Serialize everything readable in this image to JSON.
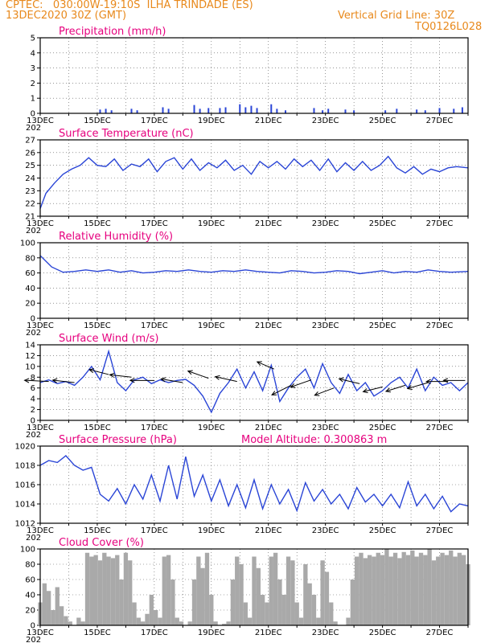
{
  "header": {
    "line1_left": "CPTEC:   030:00W-19:10S  ILHA TRINDADE (ES)",
    "line2_left": "13DEC2020 30Z (GMT)",
    "line1_right": "Vertical Grid Line: 30Z",
    "line2_right": "TQ0126L028"
  },
  "x_ticks": [
    "13DEC",
    "15DEC",
    "17DEC",
    "19DEC",
    "21DEC",
    "23DEC",
    "25DEC",
    "27DEC"
  ],
  "x_year_stub": "202",
  "colors": {
    "line": "#2a45d6",
    "cloud": "#a9a9a9",
    "title": "#e6007e",
    "header": "#e8891c"
  },
  "panels": [
    {
      "id": "precip",
      "title": "Precipitation  (mm/h)",
      "ylim": [
        0,
        5
      ],
      "yticks": [
        "0",
        "1",
        "2",
        "3",
        "4",
        "5"
      ]
    },
    {
      "id": "temp",
      "title": "Surface Temperature (nC)",
      "ylim": [
        21,
        27
      ],
      "yticks": [
        "21",
        "22",
        "23",
        "24",
        "25",
        "26",
        "27"
      ]
    },
    {
      "id": "rh",
      "title": "Relative Humidity  (%)",
      "ylim": [
        0,
        100
      ],
      "yticks": [
        "0",
        "20",
        "40",
        "60",
        "80",
        "100"
      ]
    },
    {
      "id": "wind",
      "title": "Surface Wind  (m/s)",
      "ylim": [
        0,
        14
      ],
      "yticks": [
        "0",
        "2",
        "4",
        "6",
        "8",
        "10",
        "12",
        "14"
      ]
    },
    {
      "id": "press",
      "title": "Surface Pressure  (hPa)",
      "extra": "Model Altitude: 0.300863  m",
      "ylim": [
        1012,
        1020
      ],
      "yticks": [
        "1012",
        "1014",
        "1016",
        "1018",
        "1020"
      ]
    },
    {
      "id": "cloud",
      "title": "Cloud Cover  (%)",
      "ylim": [
        0,
        100
      ],
      "yticks": [
        "0",
        "20",
        "40",
        "60",
        "80",
        "100"
      ]
    }
  ],
  "chart_data": {
    "type": "line",
    "x_range_days": [
      13,
      28
    ],
    "precip": {
      "x": [
        15.1,
        15.3,
        15.5,
        16.2,
        16.4,
        17.3,
        17.5,
        18.4,
        18.6,
        18.9,
        19.3,
        19.5,
        20.0,
        20.2,
        20.4,
        20.6,
        21.1,
        21.3,
        21.6,
        22.6,
        22.9,
        23.1,
        23.7,
        24.0,
        25.1,
        25.5,
        26.2,
        26.5,
        27.0,
        27.5,
        27.8
      ],
      "y": [
        0.25,
        0.3,
        0.2,
        0.3,
        0.2,
        0.4,
        0.3,
        0.55,
        0.3,
        0.35,
        0.35,
        0.4,
        0.6,
        0.4,
        0.5,
        0.35,
        0.6,
        0.3,
        0.2,
        0.35,
        0.2,
        0.3,
        0.25,
        0.2,
        0.2,
        0.3,
        0.25,
        0.2,
        0.35,
        0.3,
        0.4
      ]
    },
    "temp": {
      "x": [
        13.0,
        13.2,
        13.5,
        13.8,
        14.1,
        14.4,
        14.7,
        15.0,
        15.3,
        15.6,
        15.9,
        16.2,
        16.5,
        16.8,
        17.1,
        17.4,
        17.7,
        18.0,
        18.3,
        18.6,
        18.9,
        19.2,
        19.5,
        19.8,
        20.1,
        20.4,
        20.7,
        21.0,
        21.3,
        21.6,
        21.9,
        22.2,
        22.5,
        22.8,
        23.1,
        23.4,
        23.7,
        24.0,
        24.3,
        24.6,
        24.9,
        25.2,
        25.5,
        25.8,
        26.1,
        26.4,
        26.7,
        27.0,
        27.3,
        27.6,
        28.0
      ],
      "y": [
        21.6,
        22.8,
        23.6,
        24.3,
        24.7,
        25.0,
        25.6,
        25.0,
        24.9,
        25.5,
        24.6,
        25.1,
        24.9,
        25.5,
        24.5,
        25.3,
        25.6,
        24.7,
        25.5,
        24.6,
        25.2,
        24.8,
        25.4,
        24.6,
        25.0,
        24.3,
        25.3,
        24.8,
        25.3,
        24.7,
        25.5,
        24.9,
        25.4,
        24.6,
        25.5,
        24.5,
        25.2,
        24.6,
        25.3,
        24.6,
        25.0,
        25.7,
        24.8,
        24.4,
        24.9,
        24.3,
        24.7,
        24.5,
        24.8,
        24.9,
        24.8
      ]
    },
    "rh": {
      "x": [
        13.0,
        13.4,
        13.8,
        14.2,
        14.6,
        15.0,
        15.4,
        15.8,
        16.2,
        16.6,
        17.0,
        17.4,
        17.8,
        18.2,
        18.6,
        19.0,
        19.4,
        19.8,
        20.2,
        20.6,
        21.0,
        21.4,
        21.8,
        22.2,
        22.6,
        23.0,
        23.4,
        23.8,
        24.2,
        24.6,
        25.0,
        25.4,
        25.8,
        26.2,
        26.6,
        27.0,
        27.4,
        28.0
      ],
      "y": [
        83,
        68,
        61,
        62,
        64,
        62,
        64,
        61,
        63,
        60,
        61,
        63,
        62,
        64,
        62,
        61,
        63,
        62,
        64,
        62,
        61,
        60,
        63,
        62,
        60,
        61,
        63,
        62,
        59,
        61,
        63,
        60,
        62,
        61,
        64,
        62,
        61,
        62
      ]
    },
    "wind": {
      "x": [
        13.0,
        13.3,
        13.6,
        13.9,
        14.2,
        14.5,
        14.8,
        15.1,
        15.4,
        15.7,
        16.0,
        16.3,
        16.6,
        16.9,
        17.2,
        17.5,
        17.8,
        18.1,
        18.4,
        18.7,
        19.0,
        19.3,
        19.6,
        19.9,
        20.2,
        20.5,
        20.8,
        21.1,
        21.4,
        21.7,
        22.0,
        22.3,
        22.6,
        22.9,
        23.2,
        23.5,
        23.8,
        24.1,
        24.4,
        24.7,
        25.0,
        25.3,
        25.6,
        25.9,
        26.2,
        26.5,
        26.8,
        27.1,
        27.4,
        27.7,
        28.0
      ],
      "y": [
        7.0,
        7.5,
        6.8,
        7.2,
        6.5,
        8.0,
        10.0,
        7.5,
        12.8,
        7.0,
        5.5,
        7.5,
        8.0,
        6.8,
        7.5,
        7.0,
        7.4,
        7.6,
        6.5,
        4.5,
        1.5,
        5.0,
        7.0,
        9.5,
        6.0,
        9.0,
        5.5,
        10.2,
        3.5,
        6.0,
        8.0,
        9.5,
        6.0,
        10.5,
        7.0,
        5.0,
        8.5,
        5.5,
        7.0,
        4.5,
        5.5,
        7.0,
        8.0,
        6.0,
        9.5,
        5.5,
        8.0,
        6.5,
        7.0,
        5.5,
        7.0
      ]
    },
    "wind_arrows": {
      "x": [
        13.3,
        14.2,
        15.4,
        16.2,
        17.0,
        18.0,
        18.9,
        19.9,
        21.2,
        21.8,
        22.5,
        23.3,
        24.2,
        25.0,
        25.8,
        26.6,
        27.3,
        27.9
      ],
      "y": [
        7.2,
        7.0,
        8.5,
        8.0,
        7.4,
        7.0,
        7.8,
        7.2,
        9.5,
        6.5,
        7.5,
        6.0,
        6.8,
        6.2,
        6.5,
        7.0,
        7.2,
        7.4
      ],
      "u": [
        -1.0,
        -0.9,
        -0.8,
        -0.9,
        -1.0,
        -0.9,
        -0.85,
        -0.9,
        -0.7,
        -0.8,
        -0.85,
        -0.8,
        -0.85,
        -0.8,
        -0.8,
        -0.85,
        -0.9,
        -0.9
      ],
      "v": [
        0.05,
        0.1,
        0.2,
        0.1,
        0.0,
        0.15,
        0.3,
        0.2,
        0.3,
        -0.4,
        -0.3,
        -0.3,
        0.2,
        -0.2,
        -0.25,
        -0.25,
        0.0,
        0.0
      ]
    },
    "press": {
      "x": [
        13.0,
        13.3,
        13.6,
        13.9,
        14.2,
        14.5,
        14.8,
        15.1,
        15.4,
        15.7,
        16.0,
        16.3,
        16.6,
        16.9,
        17.2,
        17.5,
        17.8,
        18.1,
        18.4,
        18.7,
        19.0,
        19.3,
        19.6,
        19.9,
        20.2,
        20.5,
        20.8,
        21.1,
        21.4,
        21.7,
        22.0,
        22.3,
        22.6,
        22.9,
        23.2,
        23.5,
        23.8,
        24.1,
        24.4,
        24.7,
        25.0,
        25.3,
        25.6,
        25.9,
        26.2,
        26.5,
        26.8,
        27.1,
        27.4,
        27.7,
        28.0
      ],
      "y": [
        1018.0,
        1018.5,
        1018.3,
        1019.0,
        1018.0,
        1017.5,
        1017.8,
        1015.0,
        1014.3,
        1015.6,
        1014.0,
        1016.0,
        1014.5,
        1017.0,
        1014.3,
        1018.0,
        1014.5,
        1018.9,
        1014.8,
        1017.0,
        1014.3,
        1016.5,
        1013.8,
        1016.0,
        1013.6,
        1016.5,
        1013.5,
        1016.0,
        1014.0,
        1015.5,
        1013.3,
        1016.2,
        1014.3,
        1015.5,
        1014.0,
        1015.0,
        1013.5,
        1015.7,
        1014.2,
        1015.0,
        1013.8,
        1015.0,
        1013.6,
        1016.3,
        1013.8,
        1015.0,
        1013.5,
        1014.8,
        1013.2,
        1014.0,
        1013.8
      ]
    },
    "cloud": {
      "x": [
        13.0,
        13.15,
        13.3,
        13.45,
        13.6,
        13.75,
        13.9,
        14.05,
        14.2,
        14.35,
        14.5,
        14.65,
        14.8,
        14.95,
        15.1,
        15.25,
        15.4,
        15.55,
        15.7,
        15.85,
        16.0,
        16.15,
        16.3,
        16.45,
        16.6,
        16.75,
        16.9,
        17.05,
        17.2,
        17.35,
        17.5,
        17.65,
        17.8,
        17.95,
        18.1,
        18.25,
        18.4,
        18.55,
        18.7,
        18.85,
        19.0,
        19.15,
        19.3,
        19.45,
        19.6,
        19.75,
        19.9,
        20.05,
        20.2,
        20.35,
        20.5,
        20.65,
        20.8,
        20.95,
        21.1,
        21.25,
        21.4,
        21.55,
        21.7,
        21.85,
        22.0,
        22.15,
        22.3,
        22.45,
        22.6,
        22.75,
        22.9,
        23.05,
        23.2,
        23.35,
        23.5,
        23.65,
        23.8,
        23.95,
        24.1,
        24.25,
        24.4,
        24.55,
        24.7,
        24.85,
        25.0,
        25.15,
        25.3,
        25.45,
        25.6,
        25.75,
        25.9,
        26.05,
        26.2,
        26.35,
        26.5,
        26.65,
        26.8,
        26.95,
        27.1,
        27.25,
        27.4,
        27.55,
        27.7,
        27.85,
        28.0
      ],
      "y": [
        30,
        55,
        45,
        20,
        50,
        25,
        12,
        5,
        0,
        10,
        5,
        95,
        90,
        92,
        85,
        95,
        90,
        88,
        92,
        60,
        95,
        85,
        30,
        10,
        5,
        15,
        40,
        20,
        10,
        90,
        92,
        60,
        10,
        5,
        0,
        5,
        60,
        90,
        75,
        95,
        40,
        5,
        0,
        2,
        5,
        60,
        90,
        80,
        30,
        10,
        90,
        75,
        40,
        30,
        90,
        95,
        60,
        40,
        90,
        85,
        30,
        10,
        80,
        55,
        40,
        10,
        85,
        70,
        30,
        5,
        0,
        0,
        10,
        60,
        90,
        95,
        88,
        92,
        90,
        95,
        92,
        100,
        90,
        95,
        88,
        96,
        92,
        98,
        90,
        95,
        92,
        100,
        85,
        90,
        95,
        92,
        98,
        90,
        95,
        92,
        80
      ]
    }
  }
}
